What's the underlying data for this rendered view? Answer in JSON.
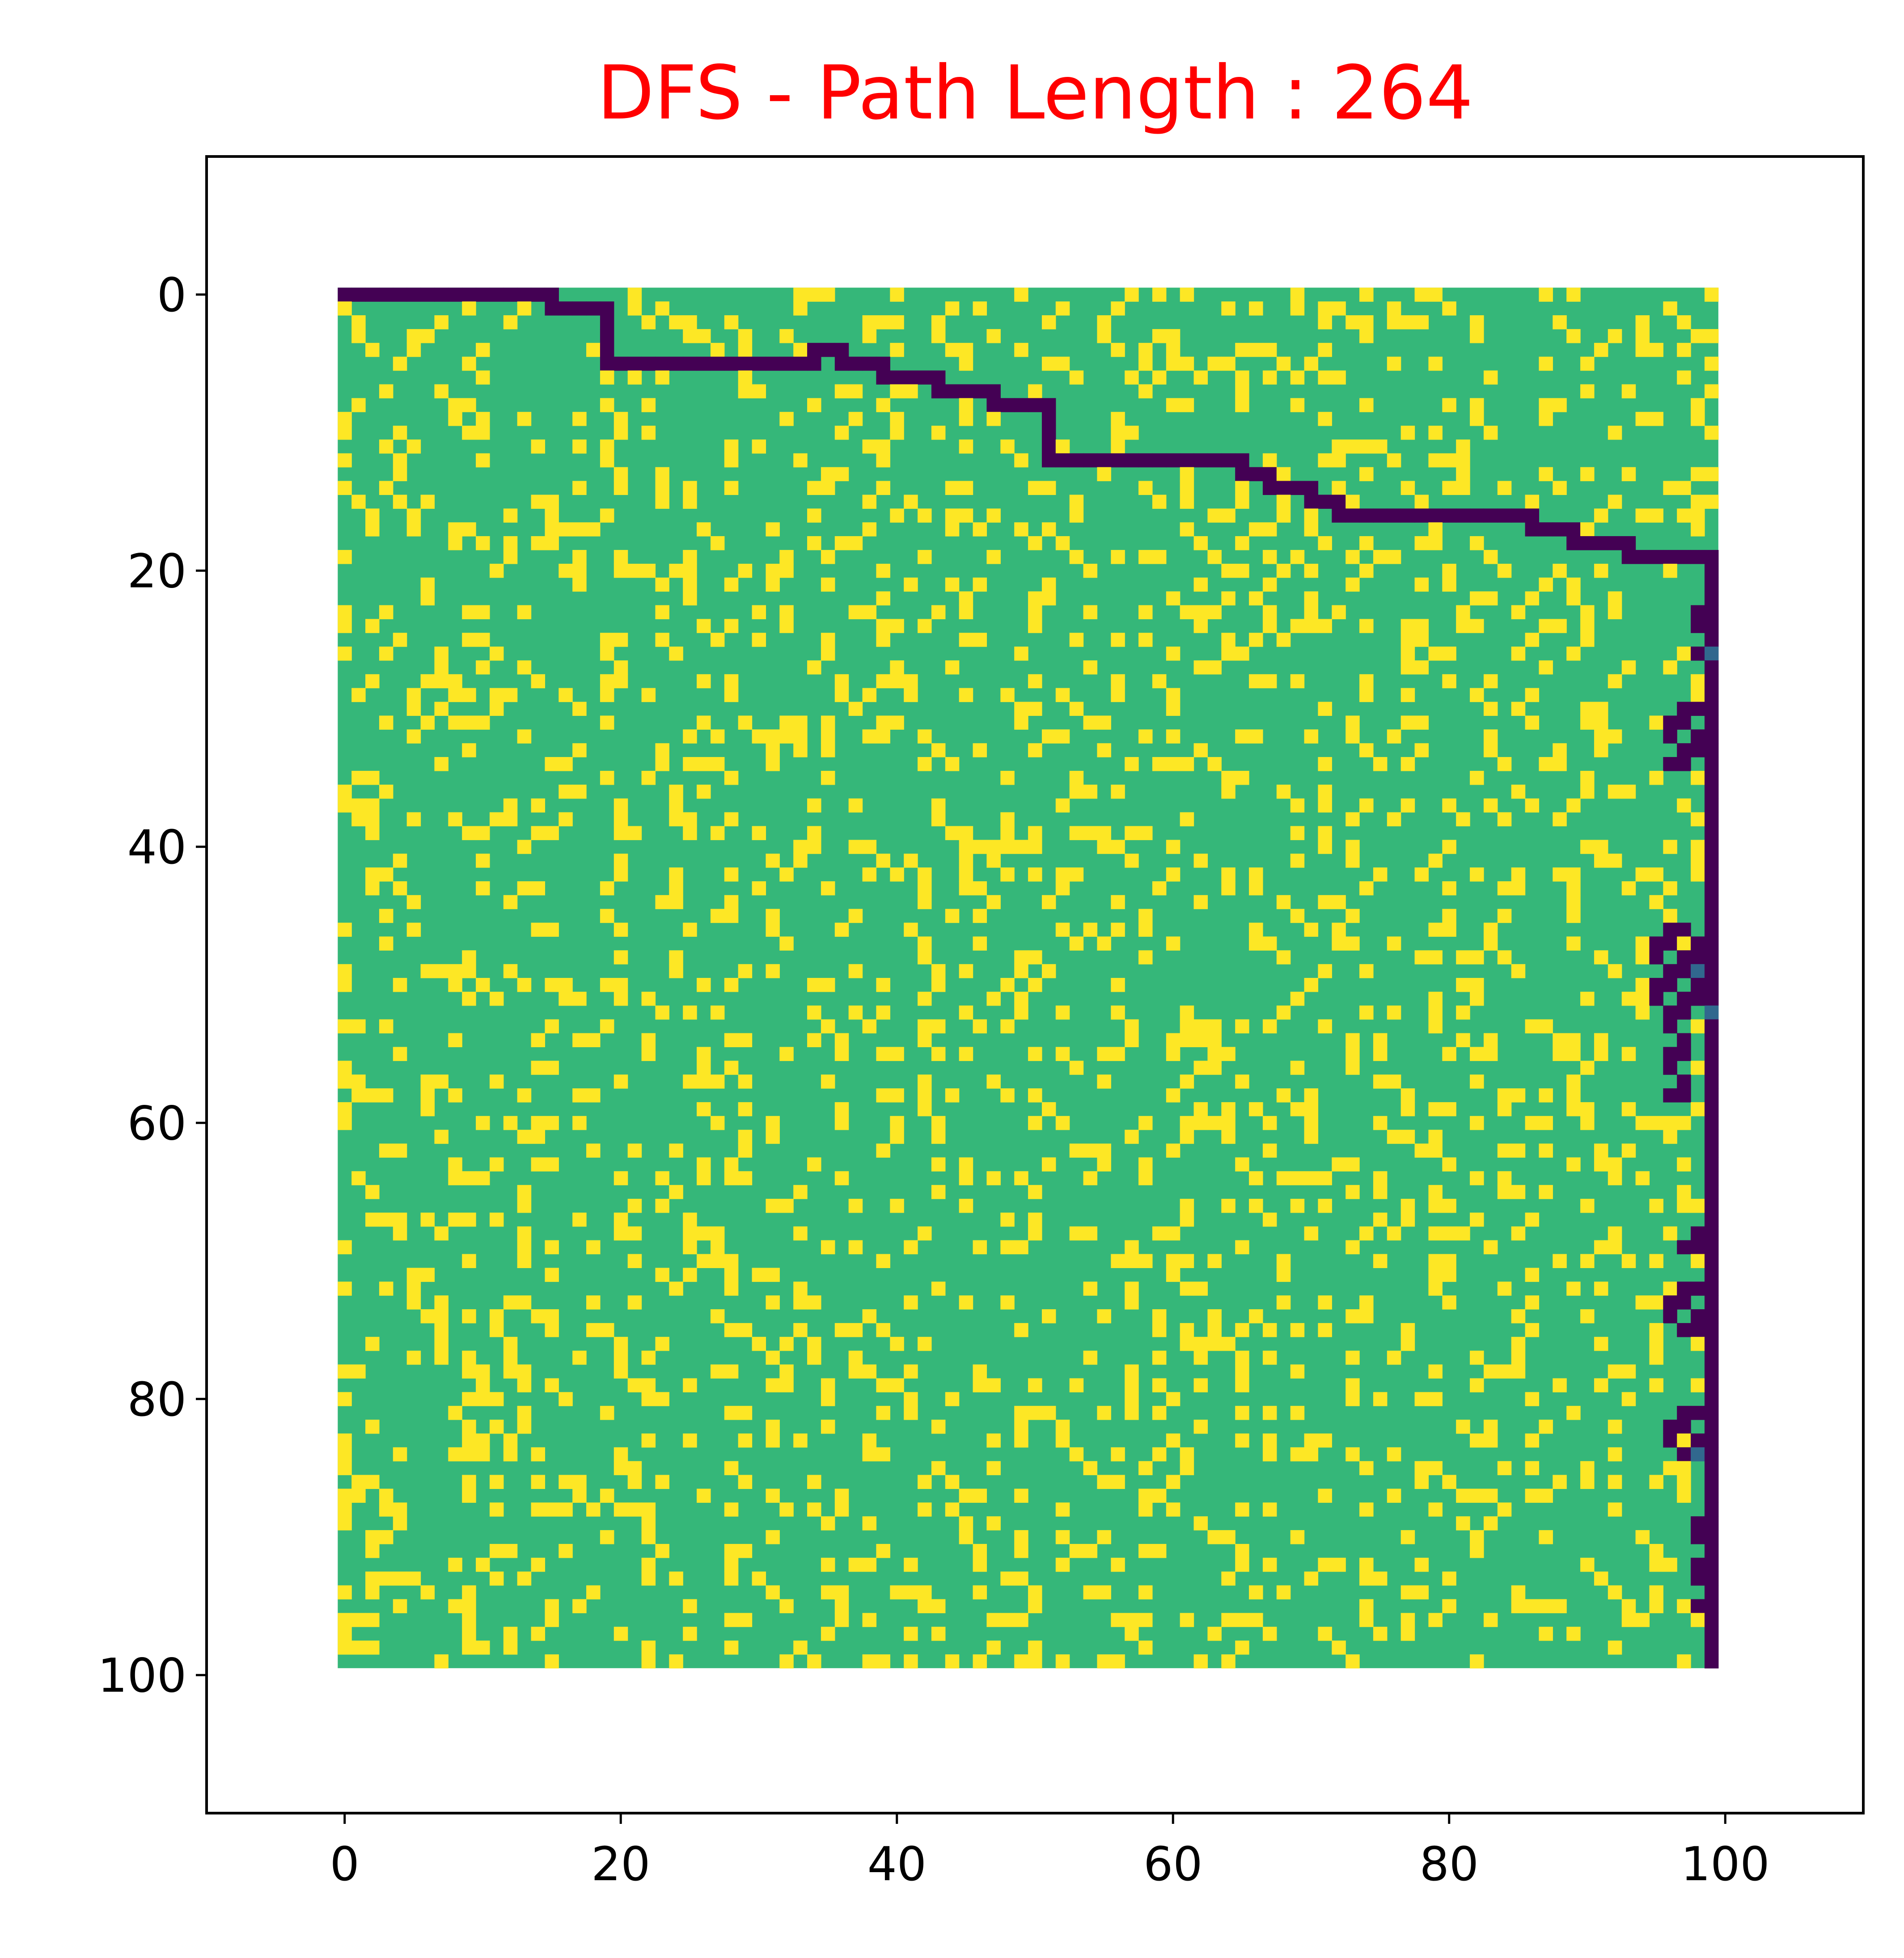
{
  "chart_data": {
    "type": "heatmap",
    "title": "DFS - Path Length : 264",
    "title_color": "#ff0000",
    "xlabel": "",
    "ylabel": "",
    "grid": false,
    "legend": "none",
    "colormap": "viridis",
    "grid_size": [
      100,
      100
    ],
    "xlim": [
      -10,
      110
    ],
    "ylim": [
      110,
      -10
    ],
    "xticks": [
      0,
      20,
      40,
      60,
      80,
      100
    ],
    "yticks": [
      0,
      20,
      40,
      60,
      80,
      100
    ],
    "colors": {
      "open_cell": "#35b779",
      "obstacle_cell": "#fde725",
      "path_cell": "#440154",
      "visited_cell": "#31688e"
    },
    "obstacle_density": 0.2,
    "path_length": 264,
    "path_vertices": [
      [
        0,
        0
      ],
      [
        15,
        0
      ],
      [
        15,
        1
      ],
      [
        19,
        1
      ],
      [
        19,
        5
      ],
      [
        34,
        5
      ],
      [
        34,
        4
      ],
      [
        36,
        4
      ],
      [
        36,
        5
      ],
      [
        39,
        5
      ],
      [
        39,
        6
      ],
      [
        43,
        6
      ],
      [
        43,
        7
      ],
      [
        47,
        7
      ],
      [
        47,
        8
      ],
      [
        51,
        8
      ],
      [
        51,
        12
      ],
      [
        65,
        12
      ],
      [
        65,
        13
      ],
      [
        67,
        13
      ],
      [
        67,
        14
      ],
      [
        70,
        14
      ],
      [
        70,
        15
      ],
      [
        72,
        15
      ],
      [
        72,
        16
      ],
      [
        86,
        16
      ],
      [
        86,
        17
      ],
      [
        89,
        17
      ],
      [
        89,
        18
      ],
      [
        93,
        18
      ],
      [
        93,
        19
      ],
      [
        99,
        19
      ],
      [
        99,
        99
      ]
    ],
    "path_blobs": [
      {
        "x": [
          96,
          99
        ],
        "y": [
          30,
          34
        ]
      },
      {
        "x": [
          98,
          99
        ],
        "y": [
          23,
          26
        ]
      },
      {
        "x": [
          95,
          99
        ],
        "y": [
          46,
          51
        ]
      },
      {
        "x": [
          96,
          97
        ],
        "y": [
          51,
          58
        ]
      },
      {
        "x": [
          96,
          99
        ],
        "y": [
          72,
          75
        ]
      },
      {
        "x": [
          96,
          99
        ],
        "y": [
          81,
          84
        ]
      },
      {
        "x": [
          97,
          99
        ],
        "y": [
          68,
          69
        ]
      },
      {
        "x": [
          98,
          99
        ],
        "y": [
          88,
          95
        ]
      }
    ]
  }
}
